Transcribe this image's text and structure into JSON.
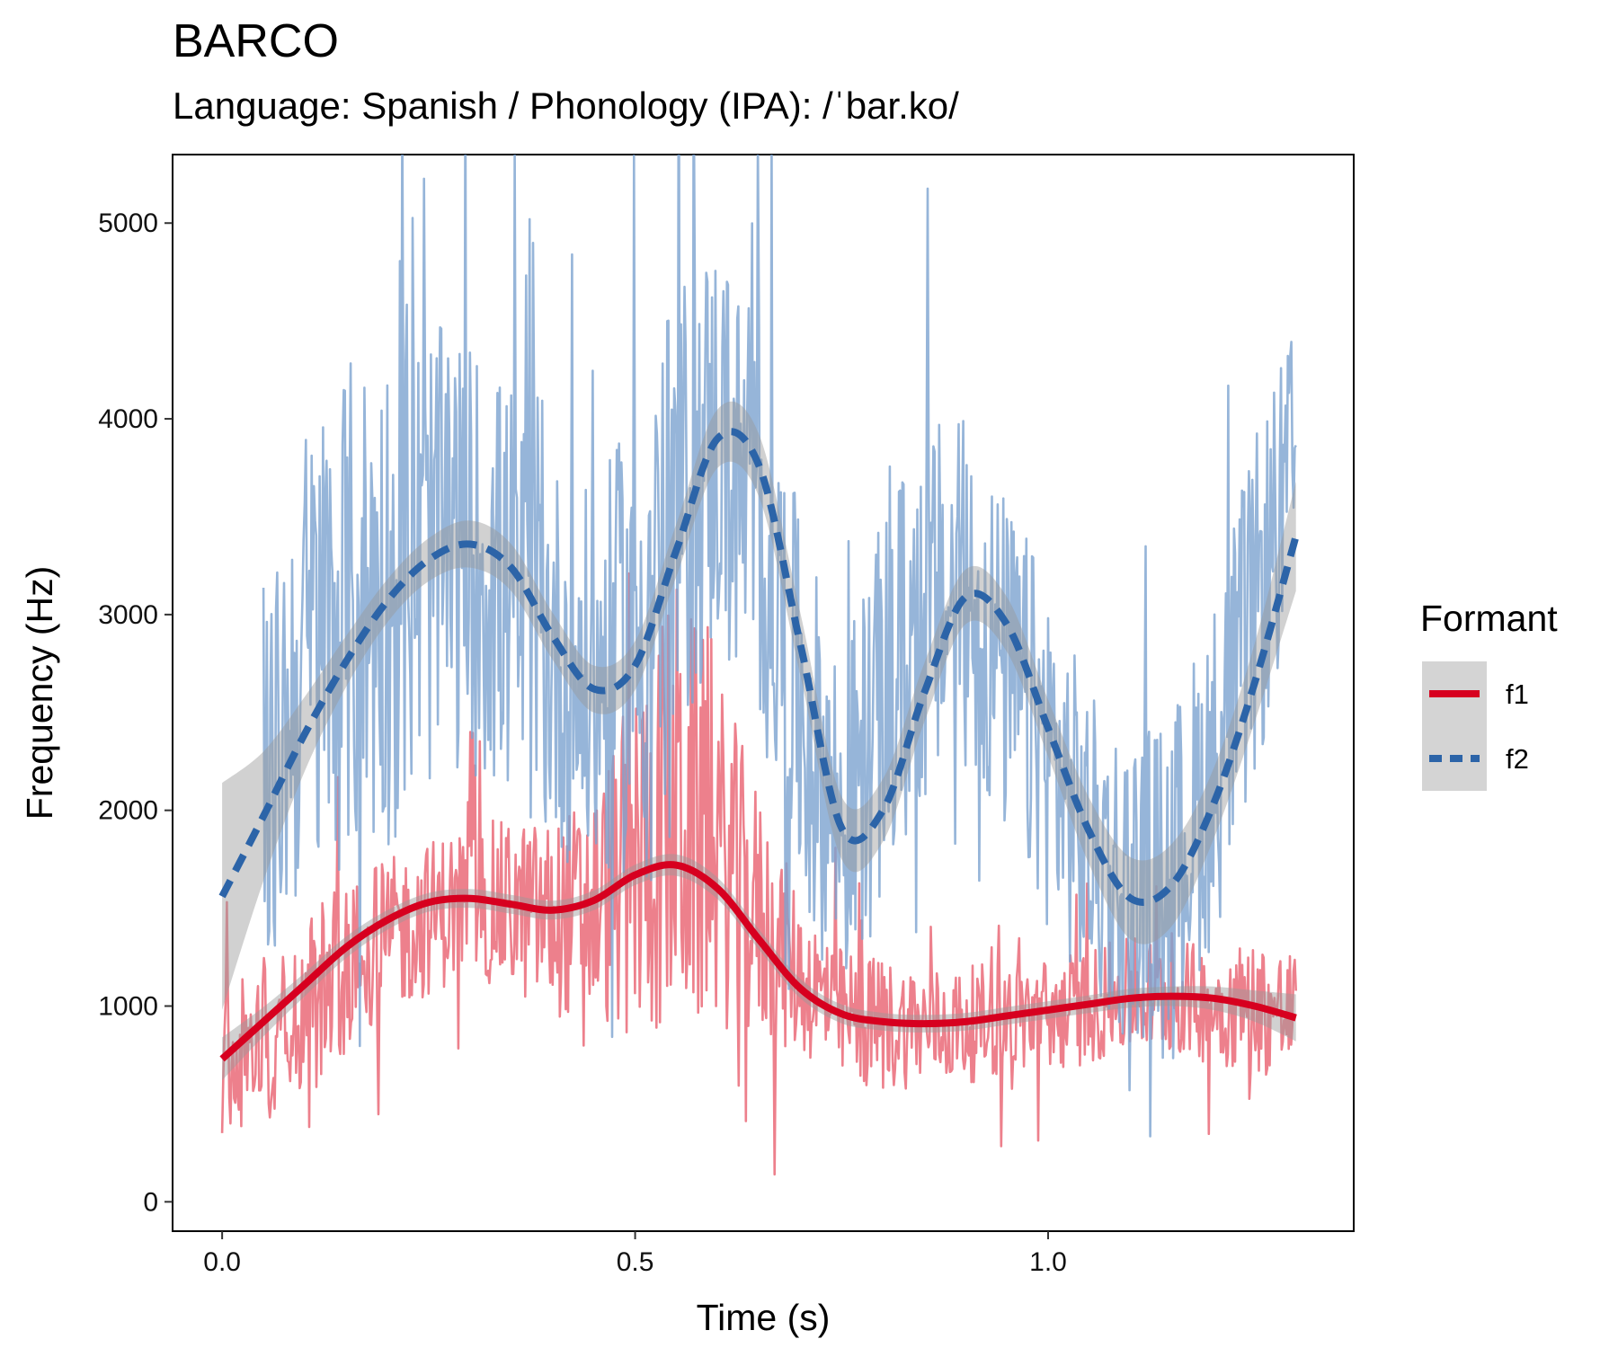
{
  "chart_data": {
    "type": "line",
    "title": "BARCO",
    "subtitle": "Language: Spanish / Phonology (IPA): /ˈbar.ko/",
    "xlabel": "Time (s)",
    "ylabel": "Frequency (Hz)",
    "xlim": [
      -0.06,
      1.37
    ],
    "ylim": [
      -150,
      5350
    ],
    "x_ticks": [
      0.0,
      0.5,
      1.0
    ],
    "x_tick_labels": [
      "0.0",
      "0.5",
      "1.0"
    ],
    "y_ticks": [
      0,
      1000,
      2000,
      3000,
      4000,
      5000
    ],
    "y_tick_labels": [
      "0",
      "1000",
      "2000",
      "3000",
      "4000",
      "5000"
    ],
    "grid": false,
    "legend": {
      "title": "Formant",
      "placement": "right",
      "entries": [
        {
          "label": "f1",
          "color": "#d7001f",
          "linestyle": "solid"
        },
        {
          "label": "f2",
          "color": "#2c64a8",
          "linestyle": "dashed"
        }
      ]
    },
    "series": [
      {
        "name": "f1",
        "role": "raw",
        "color": "#e8606f",
        "x": [
          0.0,
          0.05,
          0.1,
          0.15,
          0.2,
          0.25,
          0.3,
          0.35,
          0.4,
          0.45,
          0.5,
          0.55,
          0.6,
          0.65,
          0.7,
          0.75,
          0.8,
          0.85,
          0.9,
          0.95,
          1.0,
          1.05,
          1.1,
          1.15,
          1.2,
          1.25,
          1.3
        ],
        "y": [
          700,
          850,
          1000,
          1200,
          1350,
          1450,
          1550,
          1500,
          1450,
          1500,
          1750,
          2000,
          1800,
          1450,
          1150,
          950,
          900,
          900,
          900,
          950,
          950,
          1000,
          1050,
          1050,
          1000,
          1000,
          950
        ],
        "spread": [
          350,
          450,
          500,
          450,
          400,
          400,
          400,
          450,
          500,
          600,
          900,
          1200,
          900,
          650,
          400,
          350,
          350,
          300,
          300,
          300,
          300,
          300,
          300,
          300,
          300,
          350,
          350
        ]
      },
      {
        "name": "f2",
        "role": "raw",
        "color": "#7ca2cf",
        "x": [
          0.05,
          0.1,
          0.15,
          0.2,
          0.25,
          0.3,
          0.35,
          0.4,
          0.45,
          0.5,
          0.55,
          0.6,
          0.65,
          0.7,
          0.75,
          0.8,
          0.85,
          0.9,
          0.95,
          1.0,
          1.05,
          1.1,
          1.15,
          1.2,
          1.25,
          1.3
        ],
        "y": [
          2000,
          2800,
          3000,
          3100,
          3300,
          3300,
          3100,
          2800,
          2600,
          2900,
          3500,
          3900,
          3400,
          2500,
          1900,
          2500,
          3000,
          3100,
          2700,
          2300,
          1800,
          1600,
          1700,
          2200,
          3000,
          3800
        ],
        "spread": [
          900,
          1200,
          1300,
          1300,
          1200,
          1100,
          1100,
          1000,
          1000,
          1200,
          1200,
          1100,
          1000,
          1000,
          900,
          1000,
          1000,
          900,
          900,
          900,
          800,
          800,
          800,
          900,
          900,
          700
        ]
      },
      {
        "name": "f1",
        "role": "smooth",
        "color": "#d7001f",
        "x": [
          0.0,
          0.05,
          0.1,
          0.15,
          0.2,
          0.25,
          0.3,
          0.35,
          0.4,
          0.45,
          0.5,
          0.55,
          0.6,
          0.65,
          0.7,
          0.75,
          0.8,
          0.85,
          0.9,
          0.95,
          1.0,
          1.05,
          1.1,
          1.15,
          1.2,
          1.25,
          1.3
        ],
        "y": [
          730,
          920,
          1110,
          1300,
          1440,
          1530,
          1550,
          1520,
          1490,
          1540,
          1670,
          1720,
          1600,
          1340,
          1090,
          960,
          920,
          910,
          920,
          950,
          980,
          1010,
          1040,
          1050,
          1040,
          1000,
          940
        ],
        "ci": [
          110,
          75,
          60,
          55,
          50,
          48,
          48,
          48,
          48,
          50,
          52,
          55,
          55,
          52,
          50,
          48,
          45,
          45,
          45,
          45,
          45,
          45,
          48,
          50,
          60,
          80,
          120
        ]
      },
      {
        "name": "f2",
        "role": "smooth",
        "color": "#2c64a8",
        "x": [
          0.0,
          0.05,
          0.1,
          0.15,
          0.2,
          0.25,
          0.3,
          0.35,
          0.4,
          0.45,
          0.5,
          0.55,
          0.6,
          0.65,
          0.7,
          0.75,
          0.8,
          0.85,
          0.9,
          0.95,
          1.0,
          1.05,
          1.1,
          1.15,
          1.2,
          1.25,
          1.3
        ],
        "y": [
          1560,
          1970,
          2390,
          2760,
          3070,
          3280,
          3360,
          3240,
          2890,
          2620,
          2740,
          3330,
          3900,
          3760,
          2850,
          1910,
          2000,
          2600,
          3090,
          2950,
          2420,
          1890,
          1550,
          1620,
          2030,
          2650,
          3400
        ],
        "ci": [
          580,
          330,
          190,
          130,
          110,
          110,
          120,
          120,
          120,
          120,
          125,
          135,
          150,
          160,
          160,
          160,
          160,
          150,
          140,
          140,
          145,
          170,
          210,
          210,
          180,
          200,
          280
        ]
      }
    ]
  }
}
